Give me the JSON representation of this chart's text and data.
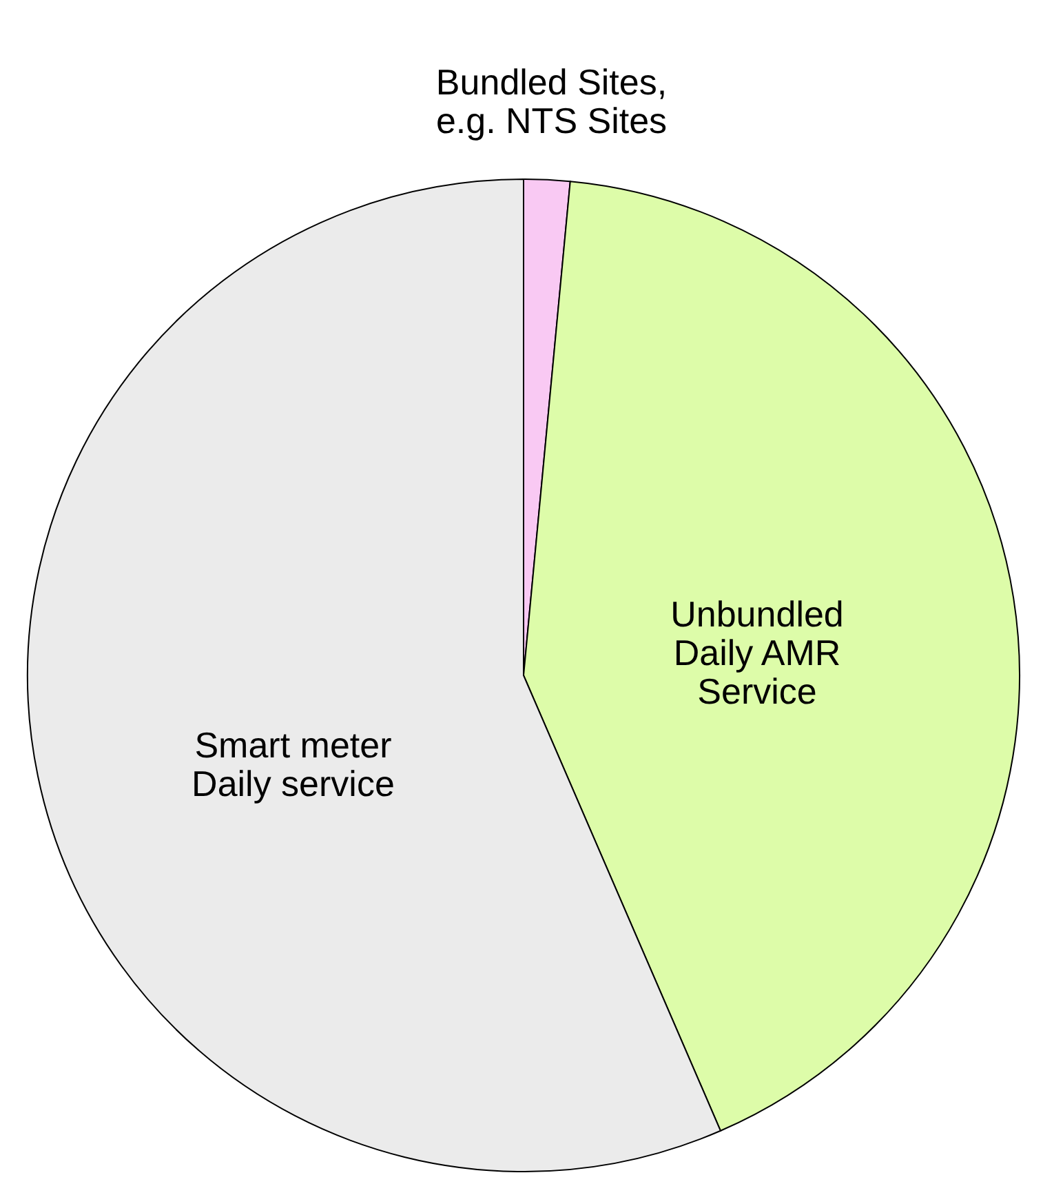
{
  "chart_data": {
    "type": "pie",
    "categories": [
      "Bundled Sites, e.g. NTS Sites",
      "Unbundled Daily AMR Service",
      "Smart meter Daily service"
    ],
    "values": [
      1.5,
      42,
      56.5
    ],
    "colors": [
      "#f9c9f3",
      "#ddfca9",
      "#ebebeb"
    ]
  }
}
